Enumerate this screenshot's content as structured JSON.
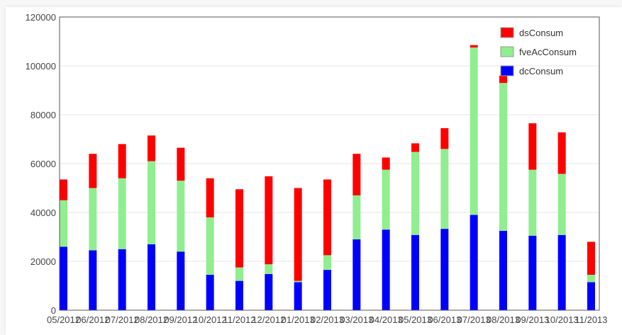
{
  "chart_data": {
    "type": "bar",
    "stacked": true,
    "categories": [
      "05/2012",
      "06/2012",
      "07/2012",
      "08/2012",
      "09/2012",
      "10/2012",
      "11/2012",
      "12/2012",
      "01/2013",
      "02/2013",
      "03/2013",
      "04/2013",
      "05/2013",
      "06/2013",
      "07/2013",
      "08/2013",
      "09/2013",
      "10/2013",
      "11/2013"
    ],
    "series": [
      {
        "name": "dcConsum",
        "color": "#0000ff",
        "values": [
          26000,
          24500,
          25000,
          27000,
          24000,
          14500,
          12000,
          14800,
          11500,
          16500,
          29000,
          33000,
          30800,
          33300,
          39000,
          32500,
          30500,
          30800,
          11500
        ]
      },
      {
        "name": "fveAcConsum",
        "color": "#90ee90",
        "values": [
          19000,
          25500,
          29000,
          34000,
          29000,
          23500,
          5500,
          4000,
          500,
          6000,
          18000,
          24500,
          34000,
          32700,
          68500,
          60500,
          27000,
          25000,
          3000
        ]
      },
      {
        "name": "dsConsum",
        "color": "#ff0000",
        "values": [
          8500,
          14000,
          14000,
          10500,
          13500,
          16000,
          32000,
          36000,
          38000,
          31000,
          17000,
          5000,
          3500,
          8500,
          1000,
          3000,
          19000,
          17000,
          13500
        ]
      }
    ],
    "yticks": [
      "0",
      "20000",
      "40000",
      "60000",
      "80000",
      "100000",
      "120000"
    ],
    "ylim": [
      0,
      120000
    ],
    "grid": true,
    "legend": "top-right",
    "legend_order": [
      "dsConsum",
      "fveAcConsum",
      "dcConsum"
    ]
  }
}
